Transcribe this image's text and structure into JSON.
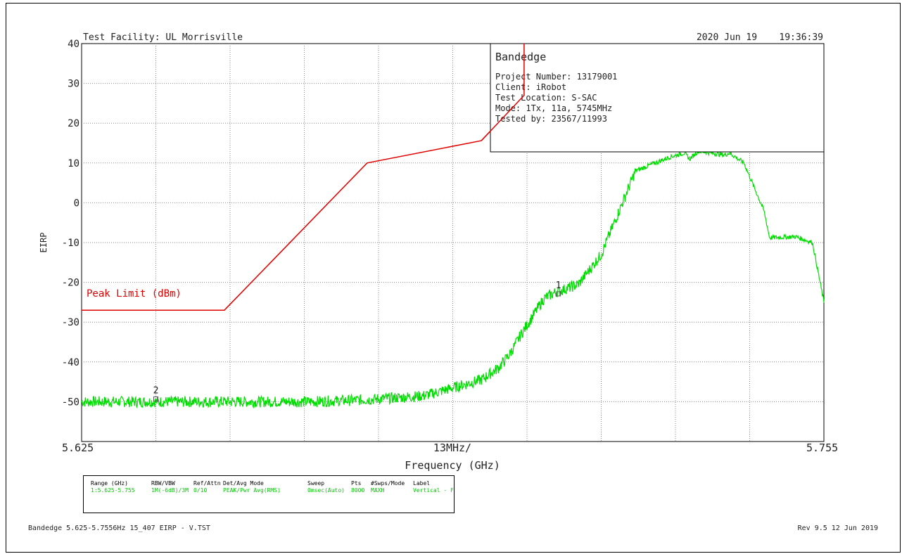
{
  "header": {
    "facility": "Test Facility:  UL Morrisville",
    "datetime": "2020 Jun 19    19:36:39"
  },
  "info_box": {
    "title": "Bandedge",
    "lines": [
      "Project Number: 13179001",
      "Client: iRobot",
      "Test Location: S-SAC",
      "Mode: 1Tx, 11a, 5745MHz",
      "Tested by: 23567/11993"
    ]
  },
  "chart_data": {
    "type": "line",
    "ylabel": "EIRP",
    "xlabel": "Frequency (GHz)",
    "x_start_label": "5.625",
    "x_end_label": "5.755",
    "x_div_label": "13MHz/",
    "xlim": [
      5.625,
      5.755
    ],
    "ylim": [
      -60,
      40
    ],
    "y_ticks": [
      "40",
      "30",
      "20",
      "10",
      "0",
      "-10",
      "-20",
      "-30",
      "-40",
      "-50"
    ],
    "grid": true,
    "limit_line": {
      "name": "Peak Limit (dBm)",
      "color": "#e00000",
      "x": [
        5.625,
        5.65,
        5.675,
        5.695,
        5.7025
      ],
      "y": [
        -27,
        -27,
        10,
        15.6,
        27
      ]
    },
    "trace": {
      "color": "#00dd00",
      "x": [
        5.625,
        5.635,
        5.645,
        5.655,
        5.665,
        5.675,
        5.685,
        5.69,
        5.695,
        5.698,
        5.7,
        5.702,
        5.706,
        5.708,
        5.71,
        5.712,
        5.716,
        5.722,
        5.728,
        5.7305,
        5.7315,
        5.733,
        5.7375,
        5.7385,
        5.741,
        5.7445,
        5.7455,
        5.75,
        5.753,
        5.755
      ],
      "y": [
        -50,
        -50,
        -50,
        -50,
        -50,
        -49.5,
        -48.5,
        -46.5,
        -44.5,
        -41.5,
        -38,
        -33,
        -24,
        -22.5,
        -21.5,
        -20.5,
        -13,
        8,
        11.5,
        12.5,
        11,
        13,
        12,
        12.5,
        10,
        -2,
        -8.8,
        -8.5,
        -10,
        -25
      ]
    },
    "markers": [
      {
        "label": "2",
        "x": 5.638,
        "y": -50
      },
      {
        "label": "1",
        "x": 5.7085,
        "y": -23.6
      }
    ]
  },
  "settings": {
    "headers": [
      "Range (GHz)",
      "RBW/VBW",
      "Ref/Attn",
      "Det/Avg Mode",
      "Sweep",
      "Pts",
      "#Swps/Mode",
      "Label"
    ],
    "values": [
      "1:5.625-5.755",
      "1M(-6dB)/3M",
      "0/10",
      "PEAK/Pwr Avg(RMS)",
      "0msec(Auto)",
      "8000",
      "MAXH",
      "Vertical - F"
    ]
  },
  "footer": {
    "left": "Bandedge 5.625-5.7556Hz 15_407 EIRP - V.TST",
    "right": "Rev 9.5 12 Jun 2019"
  }
}
